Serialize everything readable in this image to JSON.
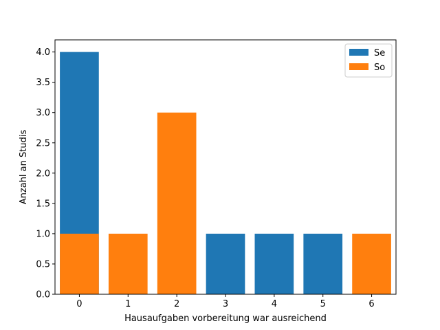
{
  "chart_data": {
    "type": "bar",
    "stacked": false,
    "overlay": true,
    "x": [
      0,
      1,
      2,
      3,
      4,
      5,
      6
    ],
    "series": [
      {
        "name": "Se",
        "color": "#1f77b4",
        "values": [
          4,
          0,
          0,
          1,
          1,
          1,
          0
        ]
      },
      {
        "name": "So",
        "color": "#ff7f0e",
        "values": [
          1,
          1,
          3,
          0,
          0,
          0,
          1
        ]
      }
    ],
    "xlabel": "Hausaufgaben vorbereitung war ausreichend",
    "ylabel": "Anzahl an Studis",
    "xlim": [
      -0.5,
      6.5
    ],
    "ylim": [
      0,
      4.2
    ],
    "yticks": [
      "0.0",
      "0.5",
      "1.0",
      "1.5",
      "2.0",
      "2.5",
      "3.0",
      "3.5",
      "4.0"
    ],
    "xticks": [
      "0",
      "1",
      "2",
      "3",
      "4",
      "5",
      "6"
    ],
    "grid": false,
    "legend": "upper-right"
  }
}
